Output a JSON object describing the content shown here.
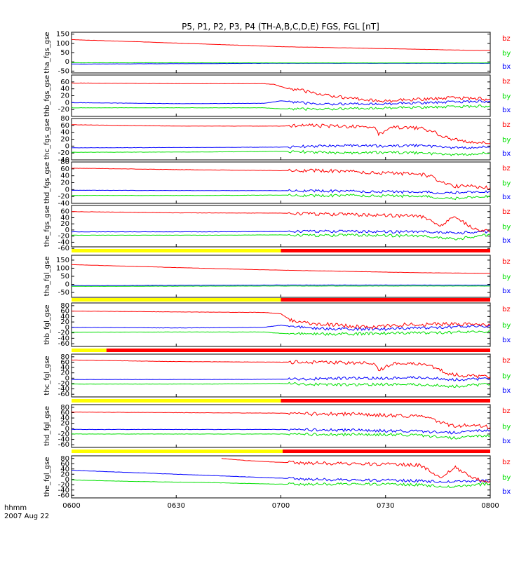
{
  "title": "P5, P1, P2, P3, P4 (TH-A,B,C,D,E) FGS, FGL [nT]",
  "time_axis": {
    "label": "hhmm",
    "date": "2007 Aug 22",
    "ticks": [
      "0600",
      "0630",
      "0700",
      "0730",
      "0800"
    ]
  },
  "colors": {
    "bz": "#ff0000",
    "by": "#00e000",
    "bx": "#0000ff",
    "mode_yellow": "#ffff00",
    "mode_red": "#ff0000"
  },
  "chart_data": {
    "type": "line",
    "x_units": "minutes after 06:00 UT",
    "xlim": [
      0,
      120
    ],
    "panels": [
      {
        "ylabel": "tha_fgs_gse",
        "ylim": [
          -60,
          160
        ],
        "ticks": [
          "150",
          "100",
          "50",
          "0",
          "-50"
        ],
        "tick_values": [
          150,
          100,
          50,
          0,
          -50
        ],
        "series": [
          {
            "name": "bz",
            "x": [
              0,
              20,
              40,
              60,
              80,
              100,
              115,
              120
            ],
            "y": [
              120,
              108,
              95,
              82,
              75,
              68,
              62,
              62
            ]
          },
          {
            "name": "by",
            "x": [
              0,
              30,
              60,
              90,
              120
            ],
            "y": [
              -5,
              -5,
              -6,
              -6,
              -6
            ]
          },
          {
            "name": "bx",
            "x": [
              0,
              30,
              60,
              90,
              120
            ],
            "y": [
              -12,
              -10,
              -8,
              -8,
              -8
            ]
          }
        ]
      },
      {
        "ylabel": "thb_fgs_gse",
        "ylim": [
          -40,
          80
        ],
        "ticks": [
          "60",
          "40",
          "20",
          "0",
          "-20"
        ],
        "tick_values": [
          60,
          40,
          20,
          0,
          -20
        ],
        "series": [
          {
            "name": "bz",
            "x": [
              0,
              30,
              55,
              58,
              62,
              66,
              70,
              80,
              90,
              100,
              110,
              120
            ],
            "y": [
              57,
              55,
              55,
              53,
              40,
              35,
              25,
              12,
              5,
              10,
              14,
              10
            ]
          },
          {
            "name": "by",
            "x": [
              0,
              30,
              55,
              60,
              70,
              90,
              110,
              120
            ],
            "y": [
              -15,
              -15,
              -15,
              -18,
              -20,
              -15,
              -12,
              -10
            ]
          },
          {
            "name": "bx",
            "x": [
              0,
              30,
              55,
              60,
              70,
              90,
              110,
              120
            ],
            "y": [
              0,
              -3,
              -2,
              5,
              -5,
              -3,
              2,
              4
            ]
          }
        ]
      },
      {
        "ylabel": "thc_fgs_gse",
        "ylim": [
          -40,
          80
        ],
        "ticks": [
          "80",
          "60",
          "40",
          "20",
          "0",
          "-20",
          "-40"
        ],
        "tick_values": [
          80,
          60,
          40,
          20,
          0,
          -20,
          -40
        ],
        "series": [
          {
            "name": "bz",
            "x": [
              0,
              30,
              60,
              65,
              75,
              87,
              88,
              92,
              100,
              103,
              108,
              112,
              120
            ],
            "y": [
              62,
              58,
              58,
              60,
              58,
              55,
              35,
              55,
              52,
              45,
              22,
              15,
              8
            ]
          },
          {
            "name": "by",
            "x": [
              0,
              40,
              60,
              80,
              90,
              100,
              110,
              120
            ],
            "y": [
              -18,
              -17,
              -15,
              -20,
              -18,
              -20,
              -25,
              -20
            ]
          },
          {
            "name": "bx",
            "x": [
              0,
              40,
              60,
              70,
              80,
              90,
              100,
              110,
              120
            ],
            "y": [
              -5,
              -4,
              -3,
              0,
              2,
              0,
              2,
              -5,
              -2
            ]
          }
        ]
      },
      {
        "ylabel": "thd_fgs_gse",
        "ylim": [
          -40,
          80
        ],
        "ticks": [
          "80",
          "60",
          "40",
          "20",
          "0",
          "-20",
          "-40"
        ],
        "tick_values": [
          80,
          60,
          40,
          20,
          0,
          -20,
          -40
        ],
        "series": [
          {
            "name": "bz",
            "x": [
              0,
              30,
              60,
              70,
              80,
              90,
              100,
              103,
              107,
              110,
              115,
              120
            ],
            "y": [
              62,
              58,
              55,
              55,
              52,
              48,
              45,
              38,
              18,
              10,
              10,
              5
            ]
          },
          {
            "name": "by",
            "x": [
              0,
              40,
              60,
              70,
              80,
              90,
              100,
              110,
              120
            ],
            "y": [
              -17,
              -17,
              -16,
              -18,
              -17,
              -18,
              -20,
              -25,
              -18
            ]
          },
          {
            "name": "bx",
            "x": [
              0,
              40,
              60,
              70,
              80,
              90,
              100,
              110,
              120
            ],
            "y": [
              -2,
              -3,
              -3,
              -4,
              -5,
              -6,
              -8,
              -8,
              -5
            ]
          }
        ]
      },
      {
        "ylabel": "the_fgs_gse",
        "ylim": [
          -55,
          80
        ],
        "ticks": [
          "60",
          "40",
          "20",
          "0",
          "-20",
          "-40",
          "-60"
        ],
        "tick_values": [
          60,
          40,
          20,
          0,
          -20,
          -40,
          -60
        ],
        "series": [
          {
            "name": "bz",
            "x": [
              0,
              30,
              60,
              80,
              100,
              103,
              106,
              110,
              113,
              115,
              120
            ],
            "y": [
              60,
              56,
              55,
              50,
              45,
              30,
              15,
              45,
              20,
              5,
              -5
            ]
          },
          {
            "name": "by",
            "x": [
              0,
              40,
              60,
              70,
              80,
              90,
              100,
              110,
              120
            ],
            "y": [
              -17,
              -17,
              -16,
              -18,
              -17,
              -18,
              -20,
              -30,
              -15
            ]
          },
          {
            "name": "bx",
            "x": [
              0,
              40,
              60,
              70,
              80,
              90,
              100,
              110,
              120
            ],
            "y": [
              -6,
              -6,
              -5,
              -4,
              -5,
              -6,
              -6,
              -10,
              -5
            ]
          }
        ]
      },
      {
        "ylabel": "tha_fgl_gse",
        "ylim": [
          -80,
          180
        ],
        "ticks": [
          "150",
          "100",
          "50",
          "0",
          "-50"
        ],
        "tick_values": [
          150,
          100,
          50,
          0,
          -50
        ],
        "series": [
          {
            "name": "bz",
            "x": [
              0,
              20,
              40,
              60,
              80,
              100,
              120
            ],
            "y": [
              122,
              110,
              98,
              88,
              80,
              72,
              68
            ]
          },
          {
            "name": "by",
            "x": [
              0,
              30,
              60,
              90,
              120
            ],
            "y": [
              -12,
              -11,
              -10,
              -10,
              -10
            ]
          },
          {
            "name": "bx",
            "x": [
              0,
              30,
              60,
              90,
              120
            ],
            "y": [
              -8,
              -6,
              -4,
              -4,
              -5
            ]
          }
        ]
      },
      {
        "ylabel": "thb_fgl_gse",
        "ylim": [
          -70,
          90
        ],
        "ticks": [
          "80",
          "60",
          "40",
          "20",
          "0",
          "-20",
          "-40",
          "-60"
        ],
        "tick_values": [
          80,
          60,
          40,
          20,
          0,
          -20,
          -40,
          -60
        ],
        "series": [
          {
            "name": "bz",
            "x": [
              0,
              30,
              55,
              60,
              63,
              68,
              75,
              85,
              95,
              105,
              120
            ],
            "y": [
              60,
              57,
              55,
              50,
              25,
              15,
              10,
              0,
              10,
              12,
              10
            ]
          },
          {
            "name": "by",
            "x": [
              0,
              30,
              55,
              60,
              70,
              90,
              110,
              120
            ],
            "y": [
              -18,
              -17,
              -17,
              -22,
              -25,
              -22,
              -18,
              -15
            ]
          },
          {
            "name": "bx",
            "x": [
              0,
              30,
              55,
              60,
              70,
              90,
              110,
              120
            ],
            "y": [
              0,
              -2,
              0,
              8,
              -5,
              -6,
              2,
              5
            ]
          }
        ]
      },
      {
        "ylabel": "thc_fgl_gse",
        "ylim": [
          -70,
          90
        ],
        "ticks": [
          "80",
          "60",
          "40",
          "20",
          "0",
          "-20",
          "-40",
          "-60"
        ],
        "tick_values": [
          80,
          60,
          40,
          20,
          0,
          -20,
          -40,
          -60
        ],
        "series": [
          {
            "name": "bz",
            "x": [
              0,
              30,
              60,
              65,
              75,
              87,
              88,
              92,
              100,
              103,
              108,
              112,
              120
            ],
            "y": [
              68,
              62,
              60,
              60,
              58,
              55,
              30,
              55,
              52,
              45,
              18,
              10,
              5
            ]
          },
          {
            "name": "by",
            "x": [
              0,
              40,
              60,
              80,
              90,
              100,
              110,
              120
            ],
            "y": [
              -22,
              -22,
              -20,
              -25,
              -22,
              -25,
              -30,
              -22
            ]
          },
          {
            "name": "bx",
            "x": [
              0,
              40,
              60,
              70,
              80,
              90,
              100,
              110,
              120
            ],
            "y": [
              -5,
              -5,
              -4,
              -2,
              0,
              0,
              2,
              -5,
              -2
            ]
          }
        ]
      },
      {
        "ylabel": "thd_fgl_gse",
        "ylim": [
          -70,
          90
        ],
        "ticks": [
          "80",
          "60",
          "40",
          "20",
          "0",
          "-20",
          "-40",
          "-60"
        ],
        "tick_values": [
          80,
          60,
          40,
          20,
          0,
          -20,
          -40,
          -60
        ],
        "series": [
          {
            "name": "bz",
            "x": [
              0,
              30,
              60,
              70,
              80,
              90,
              100,
              103,
              107,
              110,
              115,
              120
            ],
            "y": [
              62,
              60,
              58,
              55,
              55,
              50,
              45,
              35,
              18,
              8,
              15,
              5
            ]
          },
          {
            "name": "by",
            "x": [
              0,
              40,
              60,
              70,
              80,
              90,
              100,
              110,
              120
            ],
            "y": [
              -20,
              -20,
              -20,
              -22,
              -22,
              -22,
              -25,
              -35,
              -25
            ]
          },
          {
            "name": "bx",
            "x": [
              0,
              40,
              60,
              70,
              80,
              90,
              100,
              110,
              120
            ],
            "y": [
              -3,
              -3,
              -3,
              -5,
              -5,
              -8,
              -10,
              -15,
              -5
            ]
          }
        ]
      },
      {
        "ylabel": "the_fgl_gse",
        "ylim": [
          -70,
          90
        ],
        "ticks": [
          "80",
          "60",
          "40",
          "20",
          "0",
          "-20",
          "-40",
          "-60"
        ],
        "tick_values": [
          80,
          60,
          40,
          20,
          0,
          -20,
          -40,
          -60
        ],
        "series": [
          {
            "name": "bz",
            "x": [
              43,
              50,
              60,
              70,
              80,
              90,
              100,
              103,
              106,
              110,
              113,
              115,
              120
            ],
            "y": [
              80,
              72,
              65,
              62,
              60,
              58,
              55,
              30,
              10,
              45,
              20,
              5,
              -5
            ]
          },
          {
            "name": "by",
            "x": [
              0,
              20,
              40,
              60,
              70,
              80,
              90,
              100,
              110,
              120
            ],
            "y": [
              -2,
              -8,
              -12,
              -18,
              -18,
              -17,
              -18,
              -20,
              -30,
              -15
            ]
          },
          {
            "name": "bx",
            "x": [
              0,
              20,
              40,
              60,
              70,
              80,
              90,
              100,
              110,
              120
            ],
            "y": [
              35,
              25,
              15,
              5,
              0,
              -2,
              -3,
              -5,
              -10,
              -5
            ]
          }
        ]
      }
    ],
    "mode_bars": [
      {
        "before_panel": 5,
        "yellow_until": 60
      },
      {
        "before_panel": 6,
        "yellow_until": 60
      },
      {
        "before_panel": 7,
        "yellow_until": 10
      },
      {
        "before_panel": 8,
        "yellow_until": 60
      },
      {
        "before_panel": 9,
        "yellow_until": 60.5
      }
    ]
  }
}
